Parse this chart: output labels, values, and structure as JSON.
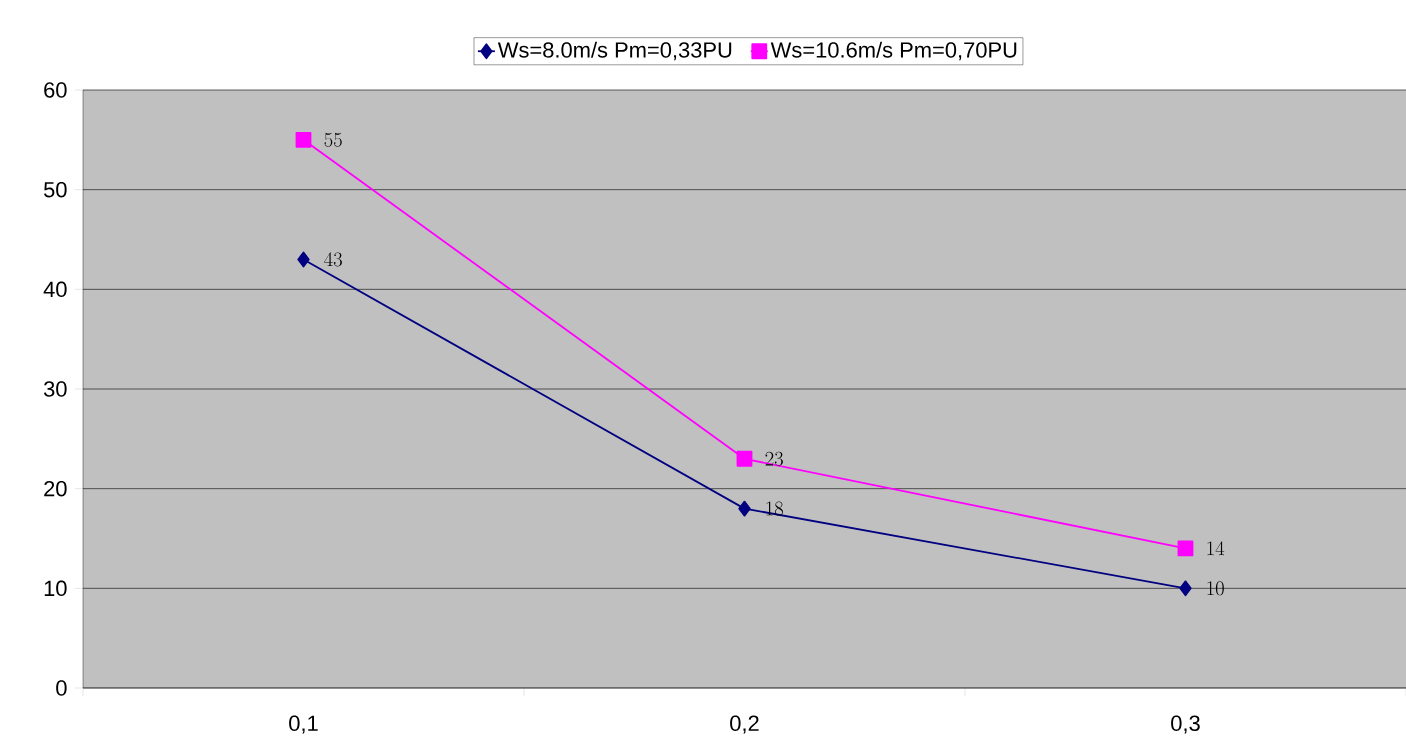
{
  "chart_data": {
    "type": "line",
    "categories": [
      "0,1",
      "0,2",
      "0,3"
    ],
    "series": [
      {
        "name": "Ws=8.0m/s Pm=0,33PU",
        "color": "#000080",
        "marker": "diamond",
        "values": [
          43,
          18,
          10
        ]
      },
      {
        "name": "Ws=10.6m/s Pm=0,70PU",
        "color": "#ff00ff",
        "marker": "square",
        "values": [
          55,
          23,
          14
        ]
      }
    ],
    "ylim": [
      0,
      60
    ],
    "yticks": [
      0,
      10,
      20,
      30,
      40,
      50,
      60
    ],
    "grid": "y",
    "legend": "top",
    "data_labels": true,
    "line_style": "solid"
  }
}
